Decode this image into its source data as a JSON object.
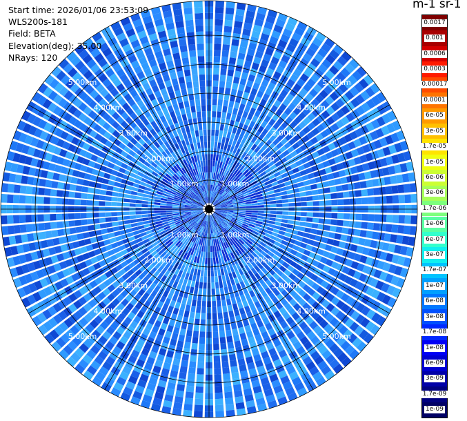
{
  "info": {
    "start_time": "Start time: 2026/01/06 23:53:09",
    "instrument": "WLS200s-181",
    "field": "Field: BETA",
    "elevation": "Elevation(deg): 35.00",
    "nrays": "NRays: 120"
  },
  "unit_title": "m-1 sr-1",
  "range_rings": [
    "1.00km",
    "2.00km",
    "3.00km",
    "4.00km",
    "5.00km"
  ],
  "colorbar": {
    "labels": [
      "0.0017",
      "0.001",
      "0.0006",
      "0.0003",
      "0.00017",
      "0.0001",
      "6e-05",
      "3e-05",
      "1.7e-05",
      "1e-05",
      "6e-06",
      "3e-06",
      "1.7e-06",
      "1e-06",
      "6e-07",
      "3e-07",
      "1.7e-07",
      "1e-07",
      "6e-08",
      "3e-08",
      "1.7e-08",
      "1e-08",
      "6e-09",
      "3e-09",
      "1.7e-09",
      "1e-09"
    ],
    "colors": [
      "#7f0000",
      "#a80000",
      "#d40000",
      "#ff1a00",
      "#ff4a00",
      "#ff7400",
      "#ff9a00",
      "#ffc000",
      "#ffe400",
      "#f0ff10",
      "#ccff33",
      "#a6ff59",
      "#7dff7d",
      "#59ffa3",
      "#33ffcc",
      "#10f0ef",
      "#00c4ff",
      "#00a0ff",
      "#0078ff",
      "#0050ff",
      "#0028ff",
      "#0000f5",
      "#0000d1",
      "#0000a8",
      "#000080",
      "#000064"
    ]
  }
}
